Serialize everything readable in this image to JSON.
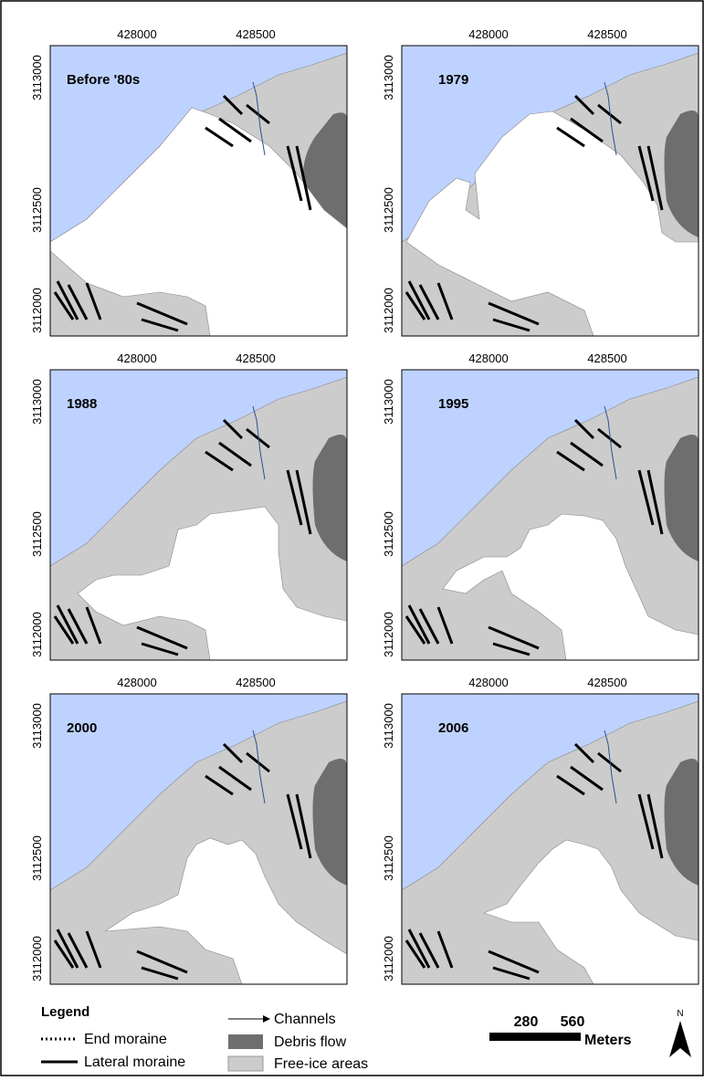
{
  "panels": [
    {
      "title": "Before '80s",
      "x_ticks": [
        "428000",
        "428500"
      ],
      "y_ticks": [
        "3113000",
        "3112500",
        "3112000"
      ]
    },
    {
      "title": "1979",
      "x_ticks": [
        "428000",
        "428500"
      ],
      "y_ticks": [
        "3113000",
        "3112500",
        "3112000"
      ]
    },
    {
      "title": "1988",
      "x_ticks": [
        "428000",
        "428500"
      ],
      "y_ticks": [
        "3113000",
        "3112500",
        "3112000"
      ]
    },
    {
      "title": "1995",
      "x_ticks": [
        "428000",
        "428500"
      ],
      "y_ticks": [
        "3113000",
        "3112500",
        "3112000"
      ]
    },
    {
      "title": "2000",
      "x_ticks": [
        "428000",
        "428500"
      ],
      "y_ticks": [
        "3113000",
        "3112500",
        "3112000"
      ]
    },
    {
      "title": "2006",
      "x_ticks": [
        "428000",
        "428500"
      ],
      "y_ticks": [
        "3113000",
        "3112500",
        "3112000"
      ]
    }
  ],
  "legend": {
    "title": "Legend",
    "items": [
      "End moraine",
      "Lateral moraine",
      "Channels",
      "Debris flow",
      "Free-ice areas"
    ]
  },
  "scale_bar": {
    "labels": [
      "280",
      "560"
    ],
    "unit": "Meters"
  },
  "north_arrow": "N"
}
